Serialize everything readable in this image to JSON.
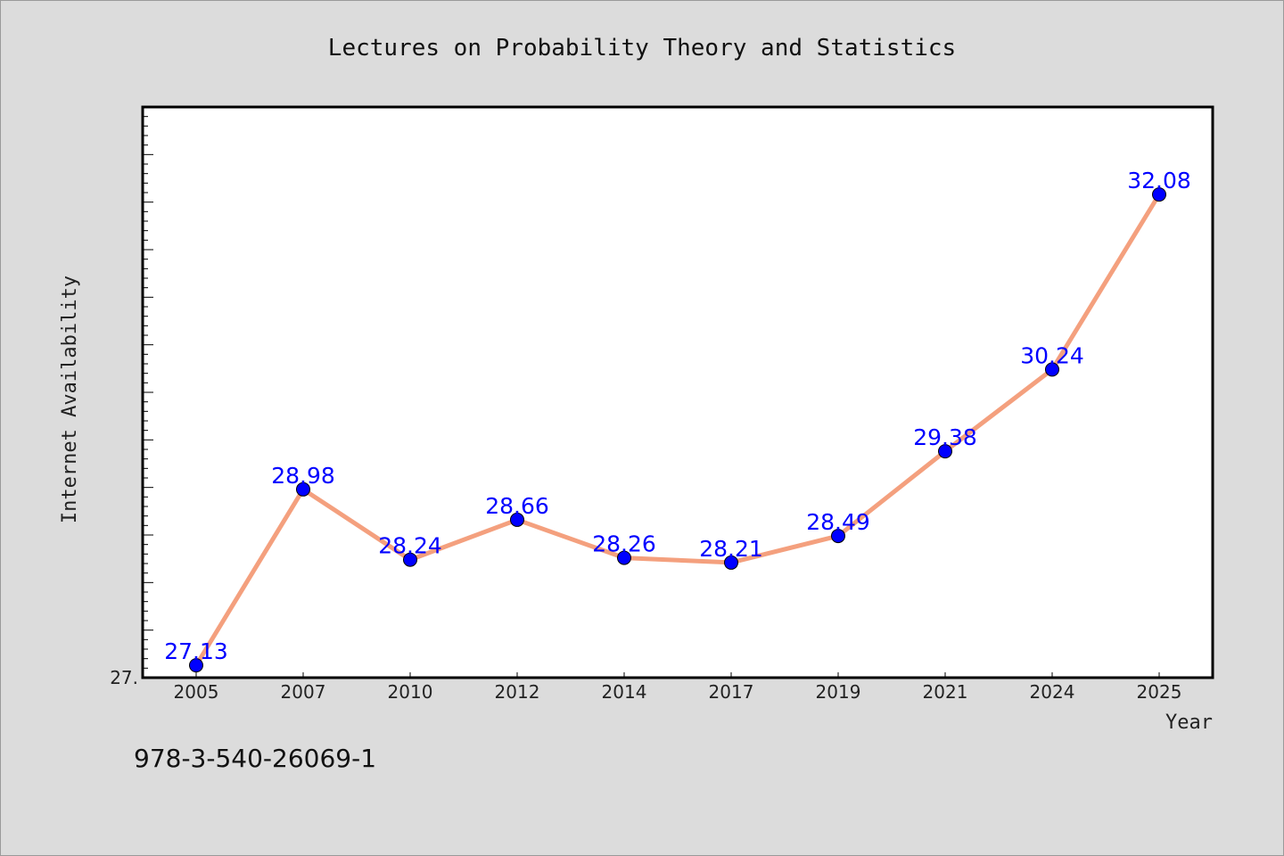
{
  "chart_data": {
    "type": "line",
    "title": "Lectures on Probability Theory and Statistics",
    "xlabel": "Year",
    "ylabel": "Internet Availability",
    "categories": [
      "2005",
      "2007",
      "2010",
      "2012",
      "2014",
      "2017",
      "2019",
      "2021",
      "2024",
      "2025"
    ],
    "series": [
      {
        "values": [
          27.13,
          28.98,
          28.24,
          28.66,
          28.26,
          28.21,
          28.49,
          29.38,
          30.24,
          32.08
        ],
        "labels": [
          "27.13",
          "28.98",
          "28.24",
          "28.66",
          "28.26",
          "28.21",
          "28.49",
          "29.38",
          "30.24",
          "32.08"
        ],
        "line_color": "#f4a07e",
        "marker_color": "#0000ff"
      }
    ],
    "ylim": [
      27.0,
      33.0
    ],
    "y_tick_labels": [
      "27."
    ],
    "grid": false,
    "legend": false
  },
  "footer": {
    "isbn": "978-3-540-26069-1"
  },
  "colors": {
    "background": "#dcdcdc",
    "plot_area": "#ffffff",
    "label_text": "#0000ff"
  }
}
